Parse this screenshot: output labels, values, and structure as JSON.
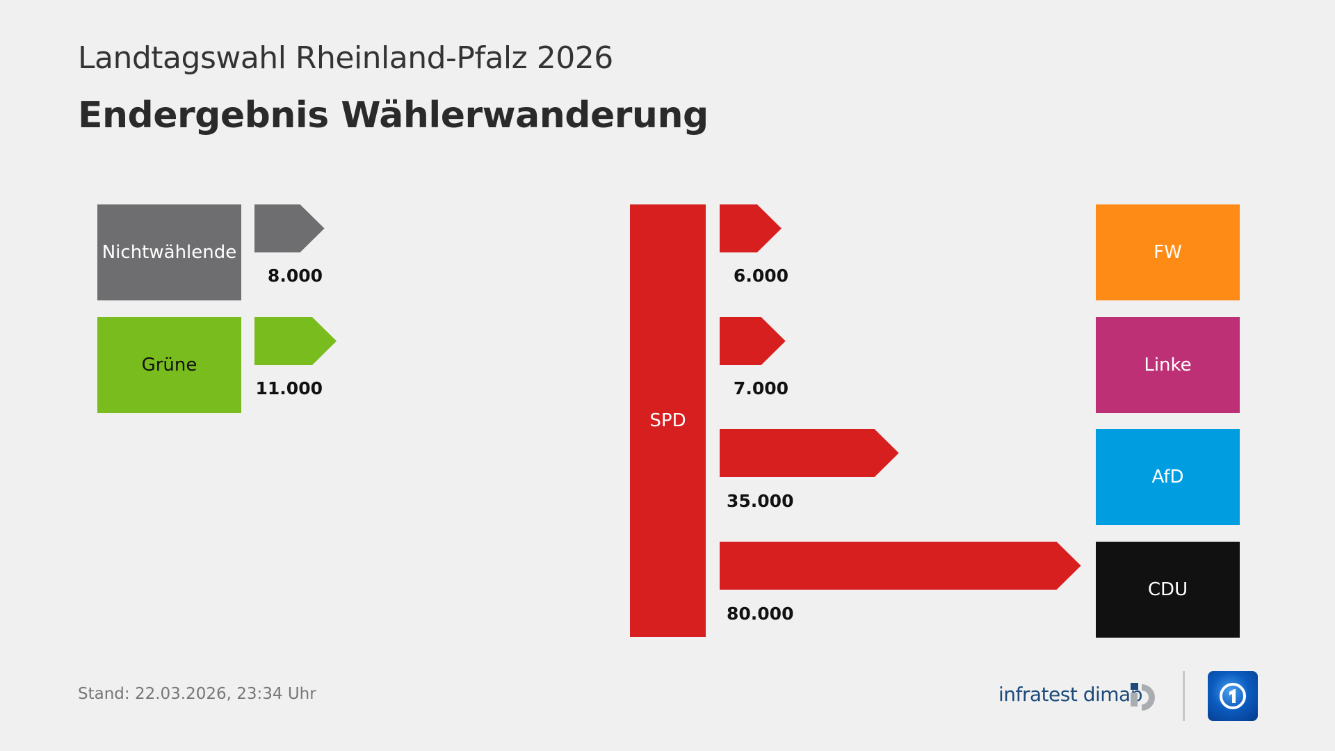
{
  "header": {
    "subtitle": "Landtagswahl Rheinland-Pfalz 2026",
    "title": "Endergebnis Wählerwanderung"
  },
  "footer": {
    "stand": "Stand:  22.03.2026, 23:34 Uhr",
    "source_logo": "infratest dimap",
    "broadcaster_logo": "tagesschau-icon"
  },
  "chart_data": {
    "type": "flow",
    "title": "Endergebnis Wählerwanderung",
    "center_party": {
      "name": "SPD",
      "color": "#d71f1f"
    },
    "inflows": [
      {
        "from": "Nichtwählende",
        "value": 8000,
        "label": "8.000",
        "color": "#6e6e70",
        "text_color": "#ffffff"
      },
      {
        "from": "Grüne",
        "value": 11000,
        "label": "11.000",
        "color": "#78bc1e",
        "text_color": "#111111"
      }
    ],
    "outflows": [
      {
        "to": "FW",
        "value": 6000,
        "label": "6.000",
        "color": "#ff8b17"
      },
      {
        "to": "Linke",
        "value": 7000,
        "label": "7.000",
        "color": "#be3075"
      },
      {
        "to": "AfD",
        "value": 35000,
        "label": "35.000",
        "color": "#009ee0"
      },
      {
        "to": "CDU",
        "value": 80000,
        "label": "80.000",
        "color": "#111111"
      }
    ]
  }
}
